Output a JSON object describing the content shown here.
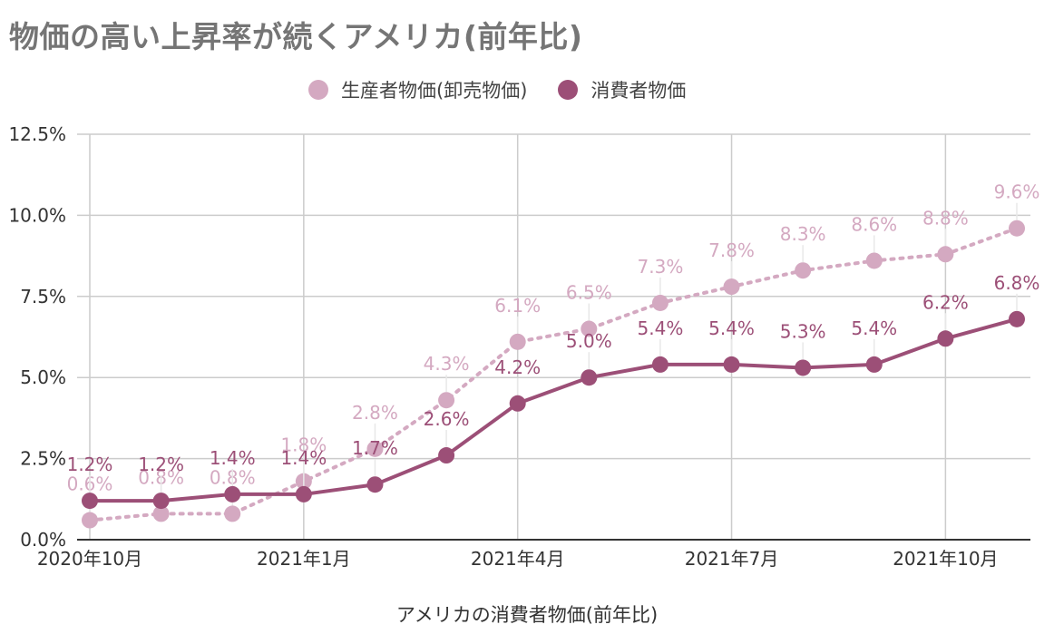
{
  "title": "物価の高い上昇率が続くアメリカ(前年比)",
  "colors": {
    "ppi": "#d4a9c1",
    "cpi": "#9c4f77",
    "grid": "#cccccc",
    "axis_text": "#333333"
  },
  "chart_data": {
    "type": "line",
    "title": "物価の高い上昇率が続くアメリカ(前年比)",
    "xlabel": "アメリカの消費者物価(前年比)",
    "ylabel": "",
    "x": [
      "2020年10月",
      "2020年11月",
      "2020年12月",
      "2021年1月",
      "2021年2月",
      "2021年3月",
      "2021年4月",
      "2021年5月",
      "2021年6月",
      "2021年7月",
      "2021年8月",
      "2021年9月",
      "2021年10月",
      "2021年11月"
    ],
    "x_tick_labels": [
      "2020年10月",
      "",
      "",
      "2021年1月",
      "",
      "",
      "2021年4月",
      "",
      "",
      "2021年7月",
      "",
      "",
      "2021年10月",
      ""
    ],
    "ylim": [
      0,
      12.5
    ],
    "y_ticks": [
      "0.0%",
      "2.5%",
      "5.0%",
      "7.5%",
      "10.0%",
      "12.5%"
    ],
    "y_tick_values": [
      0,
      2.5,
      5,
      7.5,
      10,
      12.5
    ],
    "grid": true,
    "legend_position": "top",
    "series": [
      {
        "name": "生産者物価(卸売物価)",
        "style": "dotted",
        "values": [
          0.6,
          0.8,
          0.8,
          1.8,
          2.8,
          4.3,
          6.1,
          6.5,
          7.3,
          7.8,
          8.3,
          8.6,
          8.8,
          9.6
        ],
        "labels": [
          "0.6%",
          "0.8%",
          "0.8%",
          "1.8%",
          "2.8%",
          "4.3%",
          "6.1%",
          "6.5%",
          "7.3%",
          "7.8%",
          "8.3%",
          "8.6%",
          "8.8%",
          "9.6%"
        ]
      },
      {
        "name": "消費者物価",
        "style": "solid",
        "values": [
          1.2,
          1.2,
          1.4,
          1.4,
          1.7,
          2.6,
          4.2,
          5.0,
          5.4,
          5.4,
          5.3,
          5.4,
          6.2,
          6.8
        ],
        "labels": [
          "1.2%",
          "1.2%",
          "1.4%",
          "1.4%",
          "1.7%",
          "2.6%",
          "4.2%",
          "5.0%",
          "5.4%",
          "5.4%",
          "5.3%",
          "5.4%",
          "6.2%",
          "6.8%"
        ]
      }
    ]
  }
}
